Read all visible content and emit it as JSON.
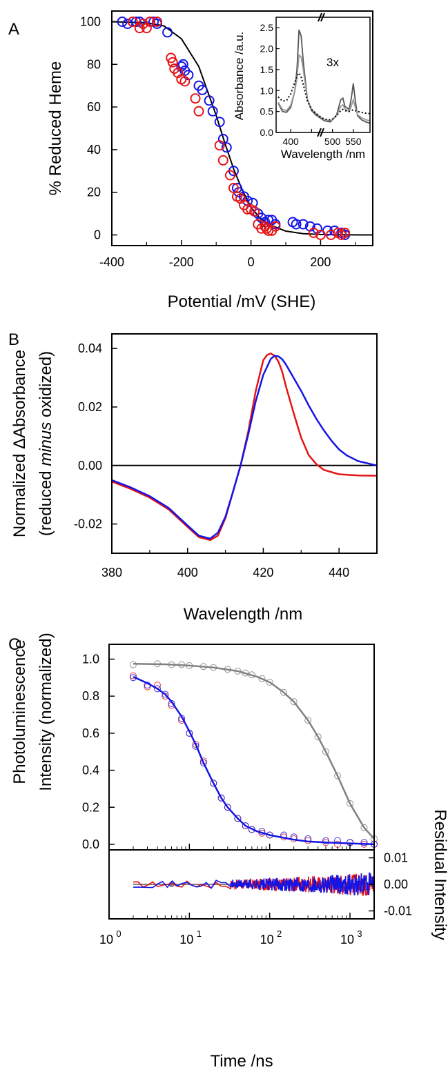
{
  "colors": {
    "blue": "#1414e6",
    "red": "#e61414",
    "gray": "#808080",
    "black": "#000000"
  },
  "chart_data": [
    {
      "panel": "A",
      "type": "scatter",
      "xlabel": "Potential /mV (SHE)",
      "ylabel": "% Reduced Heme",
      "xlim": [
        -400,
        350
      ],
      "ylim": [
        -5,
        105
      ],
      "xticks": [
        -400,
        -200,
        0,
        200
      ],
      "yticks": [
        0,
        20,
        40,
        60,
        80,
        100
      ],
      "series": [
        {
          "color": "blue",
          "points": [
            [
              -370,
              100
            ],
            [
              -355,
              99
            ],
            [
              -330,
              100
            ],
            [
              -320,
              100
            ],
            [
              -290,
              100
            ],
            [
              -280,
              100
            ],
            [
              -270,
              99
            ],
            [
              -240,
              95
            ],
            [
              -200,
              79
            ],
            [
              -195,
              80
            ],
            [
              -190,
              77
            ],
            [
              -180,
              75
            ],
            [
              -150,
              70
            ],
            [
              -140,
              68
            ],
            [
              -120,
              63
            ],
            [
              -110,
              58
            ],
            [
              -90,
              53
            ],
            [
              -80,
              45
            ],
            [
              -70,
              41
            ],
            [
              -50,
              30
            ],
            [
              -40,
              22
            ],
            [
              -35,
              20
            ],
            [
              -20,
              18
            ],
            [
              -10,
              16
            ],
            [
              5,
              15
            ],
            [
              20,
              10
            ],
            [
              30,
              8
            ],
            [
              40,
              6
            ],
            [
              50,
              7
            ],
            [
              60,
              7
            ],
            [
              70,
              5
            ],
            [
              120,
              6
            ],
            [
              130,
              5
            ],
            [
              150,
              5
            ],
            [
              170,
              4
            ],
            [
              190,
              3
            ],
            [
              220,
              2
            ],
            [
              240,
              2
            ],
            [
              260,
              1
            ],
            [
              270,
              0
            ]
          ]
        },
        {
          "color": "red",
          "points": [
            [
              -340,
              100
            ],
            [
              -320,
              97
            ],
            [
              -310,
              99
            ],
            [
              -300,
              97
            ],
            [
              -290,
              100
            ],
            [
              -270,
              100
            ],
            [
              -230,
              83
            ],
            [
              -225,
              81
            ],
            [
              -220,
              78
            ],
            [
              -210,
              76
            ],
            [
              -200,
              73
            ],
            [
              -190,
              72
            ],
            [
              -160,
              64
            ],
            [
              -150,
              58
            ],
            [
              -90,
              42
            ],
            [
              -80,
              35
            ],
            [
              -60,
              28
            ],
            [
              -50,
              22
            ],
            [
              -40,
              18
            ],
            [
              -30,
              17
            ],
            [
              -20,
              14
            ],
            [
              -10,
              12
            ],
            [
              0,
              12
            ],
            [
              10,
              11
            ],
            [
              20,
              5
            ],
            [
              30,
              3
            ],
            [
              40,
              4
            ],
            [
              45,
              3
            ],
            [
              50,
              2
            ],
            [
              60,
              2
            ],
            [
              70,
              4
            ],
            [
              180,
              1
            ],
            [
              200,
              0
            ],
            [
              230,
              0
            ],
            [
              250,
              1
            ],
            [
              260,
              0
            ],
            [
              270,
              1
            ]
          ]
        }
      ],
      "fit_line": {
        "color": "black",
        "x": [
          -400,
          -300,
          -250,
          -200,
          -150,
          -100,
          -75,
          -50,
          -25,
          0,
          25,
          50,
          100,
          150,
          200,
          250,
          300,
          350
        ],
        "y": [
          100,
          99.5,
          98,
          92,
          79,
          56,
          43,
          31,
          21,
          13,
          8,
          5,
          1.8,
          0.6,
          0.2,
          0.1,
          0,
          0
        ]
      },
      "inset": {
        "type": "line",
        "xlabel": "Wavelength /nm",
        "ylabel": "Absorbance /a.u.",
        "xlim": [
          365,
          590
        ],
        "ylim": [
          0,
          2.75
        ],
        "xticks": [
          400,
          450,
          500,
          550
        ],
        "xtick_labels": [
          "400",
          "",
          "500",
          "550"
        ],
        "yticks": [
          0,
          0.5,
          1.0,
          1.5,
          2.0,
          2.5
        ],
        "ytick_labels": [
          "0.0",
          "0.5",
          "1.0",
          "1.5",
          "2.0",
          "2.5"
        ],
        "annotation": "3x",
        "series": [
          {
            "color": "#555555",
            "style": "solid",
            "x": [
              370,
              380,
              390,
              400,
              410,
              415,
              420,
              425,
              430,
              440,
              450,
              460,
              470,
              480,
              495,
              500,
              510,
              520,
              525,
              530,
              540,
              545,
              550,
              555,
              560,
              570,
              580,
              590
            ],
            "y": [
              0.7,
              0.5,
              0.48,
              0.6,
              1.0,
              1.5,
              2.45,
              2.3,
              1.7,
              0.8,
              0.52,
              0.42,
              0.35,
              0.28,
              0.25,
              0.3,
              0.42,
              0.78,
              0.82,
              0.62,
              0.55,
              0.8,
              1.17,
              0.75,
              0.4,
              0.3,
              0.25,
              0.22
            ]
          },
          {
            "color": "#999999",
            "style": "solid",
            "x": [
              370,
              380,
              390,
              400,
              410,
              415,
              420,
              425,
              430,
              440,
              450,
              460,
              470,
              480,
              495,
              500,
              510,
              520,
              525,
              530,
              540,
              545,
              550,
              555,
              560,
              570,
              580,
              590
            ],
            "y": [
              0.72,
              0.55,
              0.52,
              0.65,
              1.0,
              1.3,
              1.85,
              1.8,
              1.5,
              0.8,
              0.55,
              0.46,
              0.38,
              0.3,
              0.28,
              0.3,
              0.4,
              0.62,
              0.66,
              0.56,
              0.5,
              0.62,
              0.78,
              0.6,
              0.42,
              0.35,
              0.3,
              0.28
            ]
          },
          {
            "color": "#000000",
            "style": "dotted",
            "x": [
              370,
              380,
              390,
              400,
              410,
              415,
              420,
              425,
              430,
              440,
              450,
              460,
              470,
              480,
              495,
              500,
              510,
              520,
              525,
              530,
              540,
              545,
              550,
              555,
              560,
              570,
              580,
              590
            ],
            "y": [
              0.85,
              0.75,
              0.76,
              0.92,
              1.2,
              1.35,
              1.42,
              1.32,
              1.15,
              0.75,
              0.55,
              0.46,
              0.38,
              0.32,
              0.3,
              0.32,
              0.4,
              0.52,
              0.55,
              0.52,
              0.5,
              0.52,
              0.54,
              0.52,
              0.5,
              0.48,
              0.46,
              0.45
            ]
          }
        ]
      }
    },
    {
      "panel": "B",
      "type": "line",
      "xlabel": "Wavelength /nm",
      "ylabel_line1_before": "Normalized ",
      "ylabel_line1_delta": "Δ",
      "ylabel_line1_after": "Absorbance",
      "ylabel_line2_before": "(reduced ",
      "ylabel_line2_italic": "minus",
      "ylabel_line2_after": " oxidized)",
      "xlim": [
        380,
        450
      ],
      "ylim": [
        -0.03,
        0.045
      ],
      "xticks": [
        380,
        400,
        420,
        440
      ],
      "yticks": [
        -0.02,
        0.0,
        0.02,
        0.04
      ],
      "ytick_labels": [
        "-0.02",
        "0.00",
        "0.02",
        "0.04"
      ],
      "zero_line": true,
      "series": [
        {
          "color": "red",
          "x": [
            380,
            385,
            390,
            395,
            400,
            403,
            406,
            408,
            410,
            412,
            414,
            416,
            418,
            420,
            421,
            422,
            423,
            424,
            425,
            426,
            428,
            430,
            432,
            434,
            436,
            440,
            445,
            450
          ],
          "y": [
            -0.0055,
            -0.008,
            -0.011,
            -0.015,
            -0.021,
            -0.0245,
            -0.0255,
            -0.024,
            -0.018,
            -0.009,
            0.0,
            0.0115,
            0.0255,
            0.036,
            0.0378,
            0.0383,
            0.0375,
            0.0355,
            0.032,
            0.027,
            0.018,
            0.0095,
            0.0035,
            0.0005,
            -0.0015,
            -0.003,
            -0.0034,
            -0.0035
          ]
        },
        {
          "color": "blue",
          "x": [
            380,
            385,
            390,
            395,
            400,
            403,
            406,
            408,
            410,
            412,
            414,
            416,
            418,
            420,
            422,
            423,
            424,
            425,
            426,
            428,
            430,
            432,
            434,
            436,
            438,
            440,
            442,
            445,
            450
          ],
          "y": [
            -0.005,
            -0.0075,
            -0.0105,
            -0.0145,
            -0.0205,
            -0.024,
            -0.025,
            -0.023,
            -0.0175,
            -0.009,
            0.0,
            0.0105,
            0.022,
            0.031,
            0.0365,
            0.0375,
            0.0373,
            0.0363,
            0.0345,
            0.03,
            0.0255,
            0.0205,
            0.016,
            0.012,
            0.0085,
            0.0055,
            0.0035,
            0.0015,
            0.0
          ]
        }
      ]
    },
    {
      "panel": "C",
      "type": "scatter",
      "xlabel": "Time /ns",
      "ylabel_line1": "Photoluminescence",
      "ylabel_line2": "Intensity (normalized)",
      "y2label": "Residual Intensity",
      "xscale": "log",
      "xlim": [
        1,
        2000
      ],
      "xticks": [
        1,
        10,
        100,
        1000
      ],
      "xtick_base": "10",
      "xtick_exponents": [
        "0",
        "1",
        "2",
        "3"
      ],
      "top": {
        "ylim": [
          -0.03,
          1.08
        ],
        "yticks": [
          0.0,
          0.2,
          0.4,
          0.6,
          0.8,
          1.0
        ],
        "ytick_labels": [
          "0.0",
          "0.2",
          "0.4",
          "0.6",
          "0.8",
          "1.0"
        ],
        "series": [
          {
            "color": "gray",
            "x": [
              2,
              4,
              6,
              8,
              10,
              15,
              20,
              30,
              40,
              50,
              60,
              80,
              100,
              150,
              200,
              300,
              400,
              500,
              700,
              1000,
              1500,
              2000
            ],
            "y": [
              0.97,
              0.975,
              0.97,
              0.97,
              0.965,
              0.96,
              0.955,
              0.945,
              0.935,
              0.925,
              0.915,
              0.895,
              0.875,
              0.82,
              0.77,
              0.67,
              0.58,
              0.5,
              0.37,
              0.22,
              0.09,
              0.03
            ]
          },
          {
            "color": "red",
            "x": [
              2,
              3,
              4,
              5,
              6,
              8,
              10,
              12,
              15,
              20,
              25,
              30,
              40,
              50,
              60,
              80,
              100,
              150,
              200,
              300,
              500,
              700,
              1000,
              1500,
              2000
            ],
            "y": [
              0.91,
              0.85,
              0.86,
              0.8,
              0.75,
              0.67,
              0.6,
              0.54,
              0.45,
              0.33,
              0.25,
              0.2,
              0.14,
              0.1,
              0.08,
              0.06,
              0.05,
              0.04,
              0.03,
              0.02,
              0.01,
              0.0,
              0.01,
              0.0,
              0.0
            ]
          },
          {
            "color": "blue",
            "x": [
              2,
              3,
              4,
              5,
              6,
              8,
              10,
              12,
              15,
              20,
              25,
              30,
              40,
              50,
              60,
              80,
              100,
              150,
              200,
              300,
              500,
              700,
              1000,
              1500,
              2000
            ],
            "y": [
              0.9,
              0.86,
              0.84,
              0.81,
              0.76,
              0.68,
              0.6,
              0.53,
              0.44,
              0.33,
              0.25,
              0.2,
              0.14,
              0.1,
              0.08,
              0.07,
              0.05,
              0.05,
              0.04,
              0.03,
              0.02,
              0.02,
              0.01,
              0.01,
              0.0
            ]
          }
        ],
        "fits": [
          {
            "color": "gray",
            "x": [
              2,
              5,
              10,
              20,
              40,
              70,
              100,
              150,
              200,
              300,
              400,
              500,
              700,
              1000,
              1500,
              2000
            ],
            "y": [
              0.975,
              0.972,
              0.965,
              0.955,
              0.935,
              0.905,
              0.875,
              0.82,
              0.77,
              0.67,
              0.58,
              0.5,
              0.37,
              0.22,
              0.09,
              0.03
            ]
          },
          {
            "color": "blue",
            "x": [
              2,
              3,
              4,
              5,
              6,
              8,
              10,
              12,
              15,
              20,
              25,
              30,
              40,
              50,
              70,
              100,
              150,
              200,
              300,
              500,
              1000,
              2000
            ],
            "y": [
              0.905,
              0.87,
              0.84,
              0.81,
              0.77,
              0.69,
              0.61,
              0.54,
              0.44,
              0.33,
              0.25,
              0.2,
              0.14,
              0.1,
              0.07,
              0.05,
              0.035,
              0.025,
              0.015,
              0.01,
              0.005,
              0.0
            ]
          }
        ]
      },
      "residual": {
        "ylim": [
          -0.013,
          0.013
        ],
        "yticks": [
          -0.01,
          0.0,
          0.01
        ],
        "ytick_labels": [
          "-0.01",
          "0.00",
          "0.01"
        ]
      }
    }
  ],
  "panel_letters": [
    "A",
    "B",
    "C"
  ]
}
